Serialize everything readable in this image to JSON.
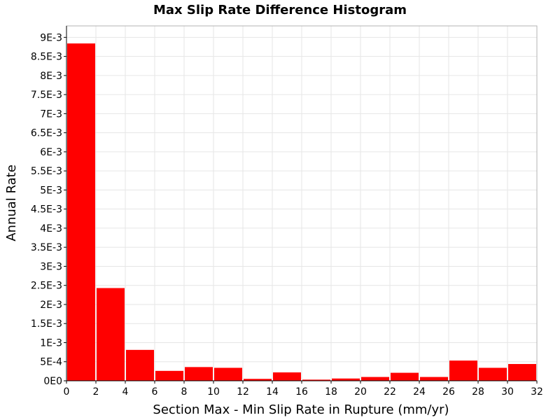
{
  "chart_data": {
    "type": "bar",
    "title": "Max Slip Rate Difference Histogram",
    "xlabel": "Section Max - Min Slip Rate in Rupture (mm/yr)",
    "ylabel": "Annual Rate",
    "xlim": [
      0,
      32
    ],
    "ylim": [
      0,
      0.0093
    ],
    "grid": true,
    "bar_color": "#ff0000",
    "grid_color": "#e6e6e6",
    "x_ticks": [
      0,
      2,
      4,
      6,
      8,
      10,
      12,
      14,
      16,
      18,
      20,
      22,
      24,
      26,
      28,
      30,
      32
    ],
    "x_tick_labels": [
      "0",
      "2",
      "4",
      "6",
      "8",
      "10",
      "12",
      "14",
      "16",
      "18",
      "20",
      "22",
      "24",
      "26",
      "28",
      "30",
      "32"
    ],
    "y_ticks": [
      0,
      0.0005,
      0.001,
      0.0015,
      0.002,
      0.0025,
      0.003,
      0.0035,
      0.004,
      0.0045,
      0.005,
      0.0055,
      0.006,
      0.0065,
      0.007,
      0.0075,
      0.008,
      0.0085,
      0.009
    ],
    "y_tick_labels": [
      "0E0",
      "5E-4",
      "1E-3",
      "1.5E-3",
      "2E-3",
      "2.5E-3",
      "3E-3",
      "3.5E-3",
      "4E-3",
      "4.5E-3",
      "5E-3",
      "5.5E-3",
      "6E-3",
      "6.5E-3",
      "7E-3",
      "7.5E-3",
      "8E-3",
      "8.5E-3",
      "9E-3"
    ],
    "bin_width": 2,
    "bins": [
      {
        "start": 0,
        "end": 2,
        "value": 0.00884
      },
      {
        "start": 2,
        "end": 4,
        "value": 0.00243
      },
      {
        "start": 4,
        "end": 6,
        "value": 0.00081
      },
      {
        "start": 6,
        "end": 8,
        "value": 0.00026
      },
      {
        "start": 8,
        "end": 10,
        "value": 0.00036
      },
      {
        "start": 10,
        "end": 12,
        "value": 0.00034
      },
      {
        "start": 12,
        "end": 14,
        "value": 5e-05
      },
      {
        "start": 14,
        "end": 16,
        "value": 0.00022
      },
      {
        "start": 16,
        "end": 18,
        "value": 3e-05
      },
      {
        "start": 18,
        "end": 20,
        "value": 6e-05
      },
      {
        "start": 20,
        "end": 22,
        "value": 0.0001
      },
      {
        "start": 22,
        "end": 24,
        "value": 0.00021
      },
      {
        "start": 24,
        "end": 26,
        "value": 0.0001
      },
      {
        "start": 26,
        "end": 28,
        "value": 0.00053
      },
      {
        "start": 28,
        "end": 30,
        "value": 0.00034
      },
      {
        "start": 30,
        "end": 32,
        "value": 0.00044
      }
    ]
  }
}
